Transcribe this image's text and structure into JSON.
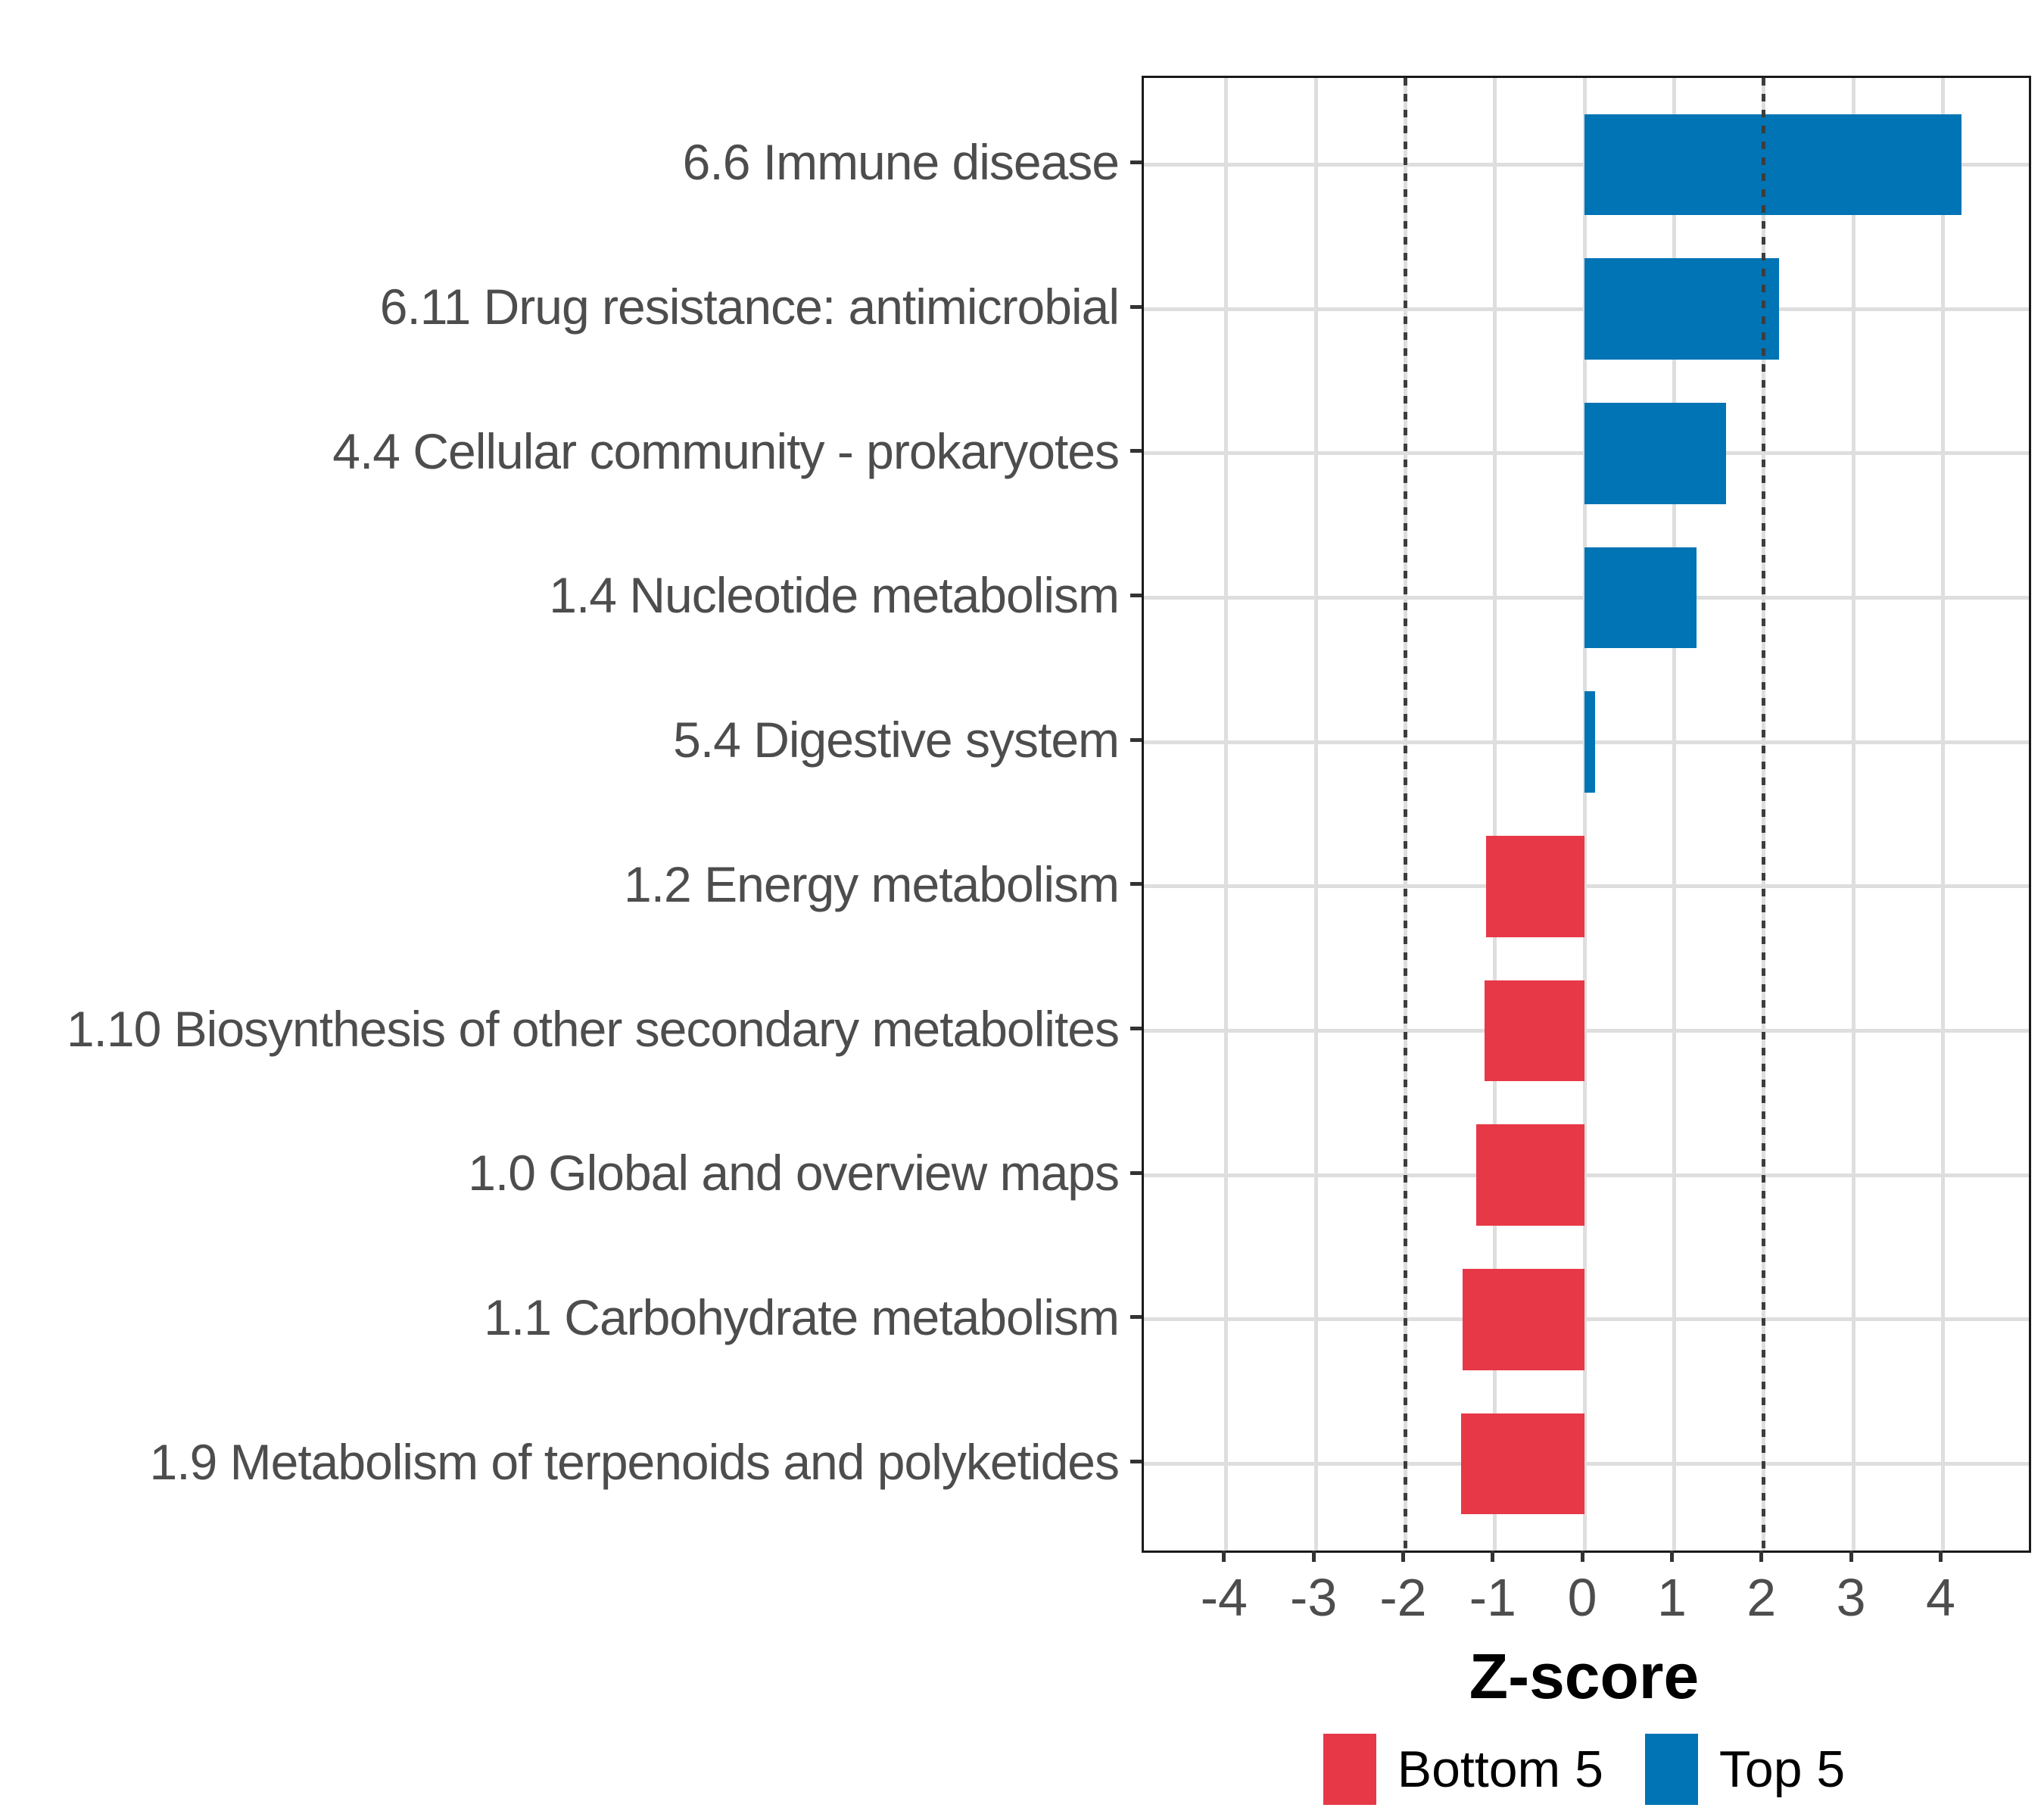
{
  "chart_data": {
    "type": "bar",
    "orientation": "horizontal",
    "title": "",
    "xlabel": "Z-score",
    "ylabel": "",
    "categories": [
      "6.6 Immune disease",
      "6.11 Drug resistance: antimicrobial",
      "4.4 Cellular community - prokaryotes",
      "1.4 Nucleotide metabolism",
      "5.4 Digestive system",
      "1.2 Energy metabolism",
      "1.10 Biosynthesis of other secondary metabolites",
      "1.0 Global and overview maps",
      "1.1 Carbohydrate metabolism",
      "1.9 Metabolism of terpenoids and polyketides"
    ],
    "values": [
      4.21,
      2.17,
      1.58,
      1.25,
      0.12,
      -1.1,
      -1.12,
      -1.21,
      -1.36,
      -1.38
    ],
    "groups": [
      "Top 5",
      "Top 5",
      "Top 5",
      "Top 5",
      "Top 5",
      "Bottom 5",
      "Bottom 5",
      "Bottom 5",
      "Bottom 5",
      "Bottom 5"
    ],
    "x_ticks": [
      -4,
      -3,
      -2,
      -1,
      0,
      1,
      2,
      3,
      4
    ],
    "x_tick_labels": [
      "-4",
      "-3",
      "-2",
      "-1",
      "0",
      "1",
      "2",
      "3",
      "4"
    ],
    "xlim": [
      -4.92,
      4.96
    ],
    "reference_lines": [
      -2,
      2
    ],
    "bar_width_fraction": 0.7,
    "grid": true,
    "legend": {
      "position": "bottom",
      "entries": [
        {
          "label": "Bottom 5",
          "color": "#E73847"
        },
        {
          "label": "Top 5",
          "color": "#0074B4"
        }
      ]
    },
    "colors": {
      "top_5": "#0074B4",
      "bottom_5": "#E73847",
      "grid": "#DEDEDE",
      "panel_border": "#1A1A1A",
      "tick": "#333333",
      "axis_text": "#4D4D4D",
      "title_text": "#000000",
      "reference_line": "#3D3D3D"
    }
  }
}
